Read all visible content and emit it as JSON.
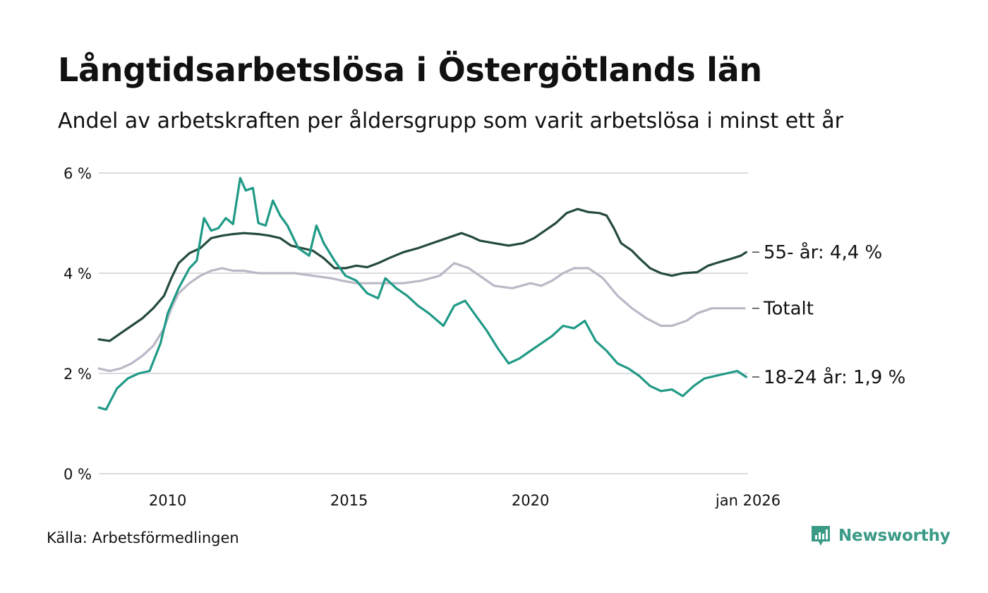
{
  "title": "Långtidsarbetslösa i Östergötlands län",
  "subtitle": "Andel av arbetskraften per åldersgrupp som varit arbetslösa i minst ett år",
  "source": "Källa: Arbetsförmedlingen",
  "brand": "Newsworthy",
  "colors": {
    "older": "#244b3c",
    "total": "#b9b8c6",
    "young": "#1f9a86",
    "grid": "#dcdce0",
    "brand": "#3a9a86"
  },
  "chart_data": {
    "type": "line",
    "title": "Långtidsarbetslösa i Östergötlands län",
    "xlabel": "",
    "ylabel": "",
    "xlim": [
      2008.1,
      2026.0
    ],
    "ylim": [
      0,
      6
    ],
    "grid": true,
    "y_ticks": [
      {
        "value": 0,
        "label": "0 %"
      },
      {
        "value": 2,
        "label": "2 %"
      },
      {
        "value": 4,
        "label": "4 %"
      },
      {
        "value": 6,
        "label": "6 %"
      }
    ],
    "x_ticks": [
      {
        "value": 2010,
        "label": "2010"
      },
      {
        "value": 2015,
        "label": "2015"
      },
      {
        "value": 2020,
        "label": "2020"
      },
      {
        "value": 2026,
        "label": "jan 2026"
      }
    ],
    "series": [
      {
        "name": "Totalt",
        "color_key": "total",
        "end_label": "Totalt",
        "points": [
          [
            2008.1,
            2.1
          ],
          [
            2008.4,
            2.05
          ],
          [
            2008.7,
            2.1
          ],
          [
            2009.0,
            2.2
          ],
          [
            2009.3,
            2.35
          ],
          [
            2009.6,
            2.55
          ],
          [
            2009.9,
            2.9
          ],
          [
            2010.1,
            3.3
          ],
          [
            2010.3,
            3.6
          ],
          [
            2010.6,
            3.8
          ],
          [
            2010.9,
            3.95
          ],
          [
            2011.2,
            4.05
          ],
          [
            2011.5,
            4.1
          ],
          [
            2011.8,
            4.05
          ],
          [
            2012.1,
            4.05
          ],
          [
            2012.5,
            4.0
          ],
          [
            2013.0,
            4.0
          ],
          [
            2013.5,
            4.0
          ],
          [
            2014.0,
            3.95
          ],
          [
            2014.5,
            3.9
          ],
          [
            2014.8,
            3.85
          ],
          [
            2015.2,
            3.8
          ],
          [
            2015.6,
            3.8
          ],
          [
            2016.0,
            3.8
          ],
          [
            2016.5,
            3.8
          ],
          [
            2017.0,
            3.85
          ],
          [
            2017.5,
            3.95
          ],
          [
            2017.9,
            4.2
          ],
          [
            2018.3,
            4.1
          ],
          [
            2018.7,
            3.9
          ],
          [
            2019.0,
            3.75
          ],
          [
            2019.5,
            3.7
          ],
          [
            2020.0,
            3.8
          ],
          [
            2020.3,
            3.75
          ],
          [
            2020.6,
            3.85
          ],
          [
            2020.9,
            4.0
          ],
          [
            2021.2,
            4.1
          ],
          [
            2021.6,
            4.1
          ],
          [
            2022.0,
            3.9
          ],
          [
            2022.4,
            3.55
          ],
          [
            2022.8,
            3.3
          ],
          [
            2023.2,
            3.1
          ],
          [
            2023.6,
            2.95
          ],
          [
            2023.9,
            2.95
          ],
          [
            2024.3,
            3.05
          ],
          [
            2024.6,
            3.2
          ],
          [
            2025.0,
            3.3
          ],
          [
            2025.5,
            3.3
          ],
          [
            2025.9,
            3.3
          ]
        ]
      },
      {
        "name": "55- år",
        "color_key": "older",
        "end_label": "55- år: 4,4 %",
        "points": [
          [
            2008.1,
            2.68
          ],
          [
            2008.4,
            2.65
          ],
          [
            2008.7,
            2.8
          ],
          [
            2009.0,
            2.95
          ],
          [
            2009.3,
            3.1
          ],
          [
            2009.6,
            3.3
          ],
          [
            2009.9,
            3.55
          ],
          [
            2010.1,
            3.9
          ],
          [
            2010.3,
            4.2
          ],
          [
            2010.6,
            4.4
          ],
          [
            2010.9,
            4.5
          ],
          [
            2011.2,
            4.7
          ],
          [
            2011.5,
            4.75
          ],
          [
            2011.8,
            4.78
          ],
          [
            2012.1,
            4.8
          ],
          [
            2012.5,
            4.78
          ],
          [
            2012.8,
            4.75
          ],
          [
            2013.1,
            4.7
          ],
          [
            2013.4,
            4.55
          ],
          [
            2013.7,
            4.5
          ],
          [
            2014.0,
            4.45
          ],
          [
            2014.3,
            4.3
          ],
          [
            2014.6,
            4.1
          ],
          [
            2014.9,
            4.1
          ],
          [
            2015.2,
            4.15
          ],
          [
            2015.5,
            4.12
          ],
          [
            2015.8,
            4.2
          ],
          [
            2016.1,
            4.3
          ],
          [
            2016.5,
            4.42
          ],
          [
            2016.9,
            4.5
          ],
          [
            2017.3,
            4.6
          ],
          [
            2017.7,
            4.7
          ],
          [
            2018.1,
            4.8
          ],
          [
            2018.4,
            4.72
          ],
          [
            2018.6,
            4.65
          ],
          [
            2019.0,
            4.6
          ],
          [
            2019.4,
            4.55
          ],
          [
            2019.8,
            4.6
          ],
          [
            2020.1,
            4.7
          ],
          [
            2020.4,
            4.85
          ],
          [
            2020.7,
            5.0
          ],
          [
            2021.0,
            5.2
          ],
          [
            2021.3,
            5.28
          ],
          [
            2021.6,
            5.22
          ],
          [
            2021.9,
            5.2
          ],
          [
            2022.1,
            5.15
          ],
          [
            2022.3,
            4.9
          ],
          [
            2022.5,
            4.6
          ],
          [
            2022.8,
            4.45
          ],
          [
            2023.0,
            4.3
          ],
          [
            2023.3,
            4.1
          ],
          [
            2023.6,
            4.0
          ],
          [
            2023.9,
            3.95
          ],
          [
            2024.2,
            4.0
          ],
          [
            2024.6,
            4.02
          ],
          [
            2024.9,
            4.15
          ],
          [
            2025.2,
            4.22
          ],
          [
            2025.5,
            4.28
          ],
          [
            2025.8,
            4.35
          ],
          [
            2025.95,
            4.42
          ]
        ]
      },
      {
        "name": "18-24 år",
        "color_key": "young",
        "end_label": "18-24 år: 1,9 %",
        "points": [
          [
            2008.1,
            1.32
          ],
          [
            2008.3,
            1.28
          ],
          [
            2008.6,
            1.7
          ],
          [
            2008.9,
            1.9
          ],
          [
            2009.2,
            2.0
          ],
          [
            2009.5,
            2.05
          ],
          [
            2009.8,
            2.6
          ],
          [
            2010.0,
            3.2
          ],
          [
            2010.3,
            3.7
          ],
          [
            2010.6,
            4.1
          ],
          [
            2010.8,
            4.25
          ],
          [
            2011.0,
            5.1
          ],
          [
            2011.2,
            4.85
          ],
          [
            2011.4,
            4.9
          ],
          [
            2011.6,
            5.1
          ],
          [
            2011.8,
            4.98
          ],
          [
            2012.0,
            5.9
          ],
          [
            2012.15,
            5.65
          ],
          [
            2012.35,
            5.7
          ],
          [
            2012.5,
            5.0
          ],
          [
            2012.7,
            4.95
          ],
          [
            2012.9,
            5.45
          ],
          [
            2013.1,
            5.15
          ],
          [
            2013.3,
            4.95
          ],
          [
            2013.6,
            4.5
          ],
          [
            2013.9,
            4.35
          ],
          [
            2014.1,
            4.95
          ],
          [
            2014.3,
            4.6
          ],
          [
            2014.6,
            4.25
          ],
          [
            2014.9,
            3.95
          ],
          [
            2015.2,
            3.85
          ],
          [
            2015.5,
            3.6
          ],
          [
            2015.8,
            3.5
          ],
          [
            2016.0,
            3.9
          ],
          [
            2016.3,
            3.7
          ],
          [
            2016.6,
            3.55
          ],
          [
            2016.9,
            3.35
          ],
          [
            2017.2,
            3.2
          ],
          [
            2017.6,
            2.95
          ],
          [
            2017.9,
            3.35
          ],
          [
            2018.2,
            3.45
          ],
          [
            2018.5,
            3.15
          ],
          [
            2018.8,
            2.85
          ],
          [
            2019.1,
            2.5
          ],
          [
            2019.4,
            2.2
          ],
          [
            2019.7,
            2.3
          ],
          [
            2020.0,
            2.45
          ],
          [
            2020.3,
            2.6
          ],
          [
            2020.6,
            2.75
          ],
          [
            2020.9,
            2.95
          ],
          [
            2021.2,
            2.9
          ],
          [
            2021.5,
            3.05
          ],
          [
            2021.8,
            2.65
          ],
          [
            2022.1,
            2.45
          ],
          [
            2022.4,
            2.2
          ],
          [
            2022.7,
            2.1
          ],
          [
            2023.0,
            1.95
          ],
          [
            2023.3,
            1.75
          ],
          [
            2023.6,
            1.65
          ],
          [
            2023.9,
            1.68
          ],
          [
            2024.2,
            1.55
          ],
          [
            2024.5,
            1.75
          ],
          [
            2024.8,
            1.9
          ],
          [
            2025.1,
            1.95
          ],
          [
            2025.4,
            2.0
          ],
          [
            2025.7,
            2.05
          ],
          [
            2025.95,
            1.93
          ]
        ]
      }
    ]
  }
}
